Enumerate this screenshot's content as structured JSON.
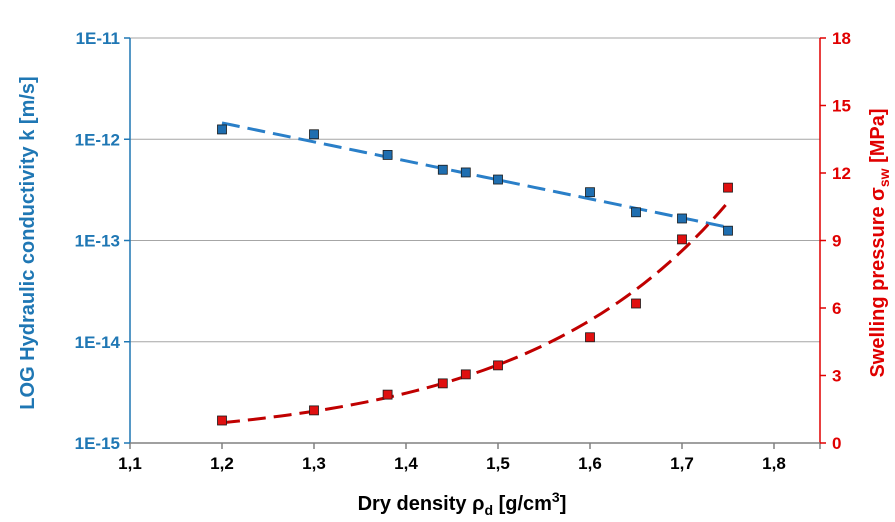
{
  "chart_data": {
    "type": "scatter",
    "xlabel": {
      "main": "Dry density ρ",
      "sub": "d",
      "tail": " [g/cm",
      "sup": "3",
      "end": "]"
    },
    "ylabel_left": "LOG Hydraulic conductivity k [m/s]",
    "ylabel_right": {
      "main": "Swelling pressure σ",
      "sub": "sw",
      "tail": " [MPa]"
    },
    "xlim": [
      1.1,
      1.85
    ],
    "x_ticks": [
      "1,1",
      "1,2",
      "1,3",
      "1,4",
      "1,5",
      "1,6",
      "1,7",
      "1,8"
    ],
    "y_left_scale": "log",
    "y_left_lim": [
      1e-15,
      1e-11
    ],
    "y_left_ticks": [
      "1E-15",
      "1E-14",
      "1E-13",
      "1E-12",
      "1E-11"
    ],
    "y_right_lim": [
      0,
      18
    ],
    "y_right_ticks": [
      "0",
      "3",
      "6",
      "9",
      "12",
      "15",
      "18"
    ],
    "grid": "horizontal",
    "colors": {
      "left": "#1f77b4",
      "right": "#e00000",
      "left_marker": "#1f6eb0",
      "right_marker": "#e01010",
      "left_trend": "#2a7fc8",
      "right_trend": "#c00000"
    },
    "series": [
      {
        "axis": "left",
        "x": [
          1.2,
          1.3,
          1.38,
          1.44,
          1.465,
          1.5,
          1.6,
          1.65,
          1.7,
          1.75
        ],
        "y": [
          1.25e-12,
          1.12e-12,
          7e-13,
          5e-13,
          4.7e-13,
          4e-13,
          3e-13,
          1.9e-13,
          1.65e-13,
          1.25e-13
        ],
        "trend": {
          "type": "exponential",
          "x_range": [
            1.2,
            1.75
          ],
          "y_start": 1.45e-12,
          "y_end": 1.35e-13
        }
      },
      {
        "axis": "right",
        "x": [
          1.2,
          1.3,
          1.38,
          1.44,
          1.465,
          1.5,
          1.6,
          1.65,
          1.7,
          1.75
        ],
        "y": [
          1.0,
          1.45,
          2.15,
          2.65,
          3.05,
          3.45,
          4.7,
          6.2,
          9.05,
          11.35
        ],
        "trend": {
          "type": "exponential",
          "x_range": [
            1.2,
            1.75
          ],
          "y_start": 0.9,
          "y_end": 10.7
        }
      }
    ]
  }
}
